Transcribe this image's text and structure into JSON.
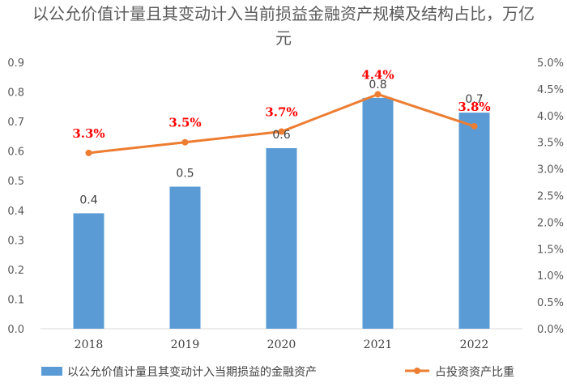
{
  "chart_data": {
    "type": "bar",
    "title": "以公允价值计量且其变动计入当前损益金融资产规模及结构占比，万亿元",
    "categories": [
      "2018",
      "2019",
      "2020",
      "2021",
      "2022"
    ],
    "series": [
      {
        "name": "以公允价值计量且其变动计入当期损益的金融资产",
        "type": "bar",
        "axis": "left",
        "color": "#5b9bd5",
        "values": [
          0.39,
          0.48,
          0.61,
          0.78,
          0.73
        ],
        "labels": [
          "0.4",
          "0.5",
          "0.6",
          "0.8",
          "0.7"
        ]
      },
      {
        "name": "占投资资产比重",
        "type": "line",
        "axis": "right",
        "color": "#ed7d31",
        "values": [
          3.3,
          3.5,
          3.7,
          4.4,
          3.8
        ],
        "labels": [
          "3.3%",
          "3.5%",
          "3.7%",
          "4.4%",
          "3.8%"
        ]
      }
    ],
    "y_left": {
      "min": 0,
      "max": 0.9,
      "step": 0.1,
      "ticks": [
        "0.0",
        "0.1",
        "0.2",
        "0.3",
        "0.4",
        "0.5",
        "0.6",
        "0.7",
        "0.8",
        "0.9"
      ]
    },
    "y_right": {
      "min": 0,
      "max": 5,
      "step": 0.5,
      "ticks": [
        "0.0%",
        "0.5%",
        "1.0%",
        "1.5%",
        "2.0%",
        "2.5%",
        "3.0%",
        "3.5%",
        "4.0%",
        "4.5%",
        "5.0%"
      ]
    },
    "legend_position": "bottom",
    "grid": false,
    "label_color": "#ff0000"
  }
}
